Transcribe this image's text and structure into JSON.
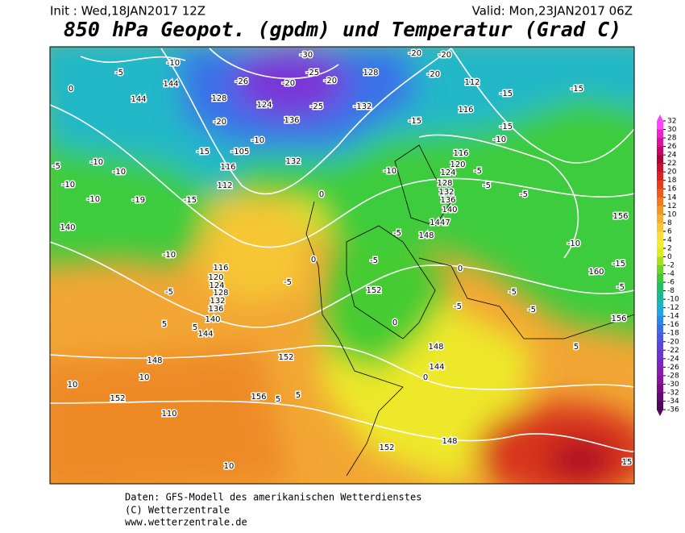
{
  "header": {
    "init": "Init : Wed,18JAN2017 12Z",
    "valid": "Valid: Mon,23JAN2017 06Z",
    "title": "850 hPa Geopot. (gpdm) und Temperatur (Grad C)"
  },
  "colorbar": {
    "ticks": [
      32,
      30,
      28,
      26,
      24,
      22,
      20,
      18,
      16,
      14,
      12,
      10,
      8,
      6,
      4,
      2,
      0,
      -2,
      -4,
      -6,
      -8,
      -10,
      -12,
      -14,
      -16,
      -18,
      -20,
      -22,
      -24,
      -26,
      -28,
      -30,
      -32,
      -34,
      -36
    ],
    "colors": [
      "#ff44ff",
      "#ee22cc",
      "#dd1199",
      "#cc0066",
      "#b0003a",
      "#c8102a",
      "#dd2020",
      "#e83a1c",
      "#ee5a1a",
      "#f07a1e",
      "#f39628",
      "#f6ae30",
      "#f8c636",
      "#fadc3a",
      "#f2ec30",
      "#dcec20",
      "#a8e020",
      "#70d428",
      "#40c838",
      "#22c060",
      "#1ab890",
      "#18b4c0",
      "#22a4e0",
      "#2c88e8",
      "#3a6ee8",
      "#4a56e4",
      "#5a44dc",
      "#6a34d0",
      "#7a26c0",
      "#8a1cae",
      "#8a149a",
      "#7a0c86",
      "#660872",
      "#50045c"
    ]
  },
  "map": {
    "labels": [
      "-10",
      "-5",
      "144",
      "0",
      "144",
      "-26",
      "-30",
      "-25",
      "-20",
      "-20",
      "128",
      "124",
      "-25",
      "-132",
      "128",
      "-20",
      "-20",
      "-20",
      "112",
      "-15",
      "-15",
      "116",
      "-15",
      "-15",
      "136",
      "-20",
      "-10",
      "-10",
      "-15",
      "-105",
      "116",
      "132",
      "-5",
      "-10",
      "-10",
      "-10",
      "112",
      "-15",
      "-19",
      "-10",
      "116",
      "120",
      "124",
      "-5",
      "128",
      "132",
      "-5",
      "136",
      "-5",
      "140",
      "-10",
      "0",
      "140",
      "156",
      "1447",
      "148",
      "-5",
      "-10",
      "-15",
      "-10",
      "116",
      "120",
      "124",
      "128",
      "132",
      "136",
      "140",
      "144",
      "-5",
      "-5",
      "-5",
      "152",
      "0",
      "0",
      "160",
      "-5",
      "-5",
      "5",
      "5",
      "-5",
      "-5",
      "148",
      "152",
      "148",
      "144",
      "10",
      "10",
      "152",
      "156",
      "5",
      "5",
      "110",
      "152",
      "148",
      "10",
      "15",
      "156",
      "5",
      "0",
      "0"
    ]
  },
  "footer": [
    "Daten: GFS-Modell des amerikanischen Wetterdienstes",
    "(C) Wetterzentrale",
    "www.wetterzentrale.de"
  ]
}
